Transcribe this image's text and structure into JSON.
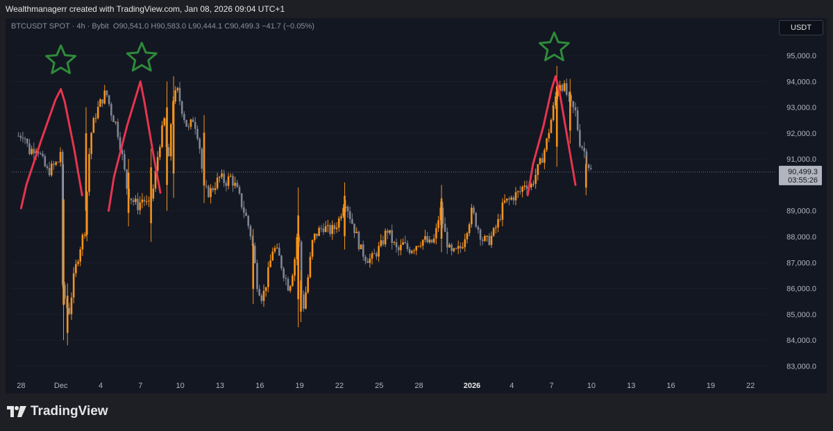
{
  "header": {
    "credit": "Wealthmanagerr created with TradingView.com, Jan 08, 2026 09:04 UTC+1"
  },
  "symbol_info": {
    "symbol": "BTCUSDT SPOT · 4h · Bybit",
    "o_label": "O",
    "o_value": "90,541.0",
    "h_label": "H",
    "h_value": "90,583.0",
    "l_label": "L",
    "l_value": "90,444.1",
    "c_label": "C",
    "c_value": "90,499.3",
    "change": "−41.7 (−0.05%)"
  },
  "currency": "USDT",
  "footer": {
    "brand": "TradingView"
  },
  "colors": {
    "up": "#f7931a",
    "down": "#7f8593",
    "trend_line": "#e8344e",
    "star": "#2e8b3a",
    "last_price_bg": "#b2b5be",
    "last_price_fg": "#131722"
  },
  "chart_data": {
    "type": "candlestick",
    "ylim": [
      82500,
      95700
    ],
    "y_ticks": [
      {
        "value": 95000,
        "label": "95,000.0"
      },
      {
        "value": 94000,
        "label": "94,000.0"
      },
      {
        "value": 93000,
        "label": "93,000.0"
      },
      {
        "value": 92000,
        "label": "92,000.0"
      },
      {
        "value": 91000,
        "label": "91,000.0"
      },
      {
        "value": 89000,
        "label": "89,000.0"
      },
      {
        "value": 88000,
        "label": "88,000.0"
      },
      {
        "value": 87000,
        "label": "87,000.0"
      },
      {
        "value": 86000,
        "label": "86,000.0"
      },
      {
        "value": 85000,
        "label": "85,000.0"
      },
      {
        "value": 84000,
        "label": "84,000.0"
      },
      {
        "value": 83000,
        "label": "83,000.0"
      }
    ],
    "x_ticks": [
      {
        "day": 28,
        "label": "28",
        "bold": false
      },
      {
        "day": 31,
        "label": "Dec",
        "bold": false
      },
      {
        "day": 34,
        "label": "4",
        "bold": false
      },
      {
        "day": 37,
        "label": "7",
        "bold": false
      },
      {
        "day": 40,
        "label": "10",
        "bold": false
      },
      {
        "day": 43,
        "label": "13",
        "bold": false
      },
      {
        "day": 46,
        "label": "16",
        "bold": false
      },
      {
        "day": 49,
        "label": "19",
        "bold": false
      },
      {
        "day": 52,
        "label": "22",
        "bold": false
      },
      {
        "day": 55,
        "label": "25",
        "bold": false
      },
      {
        "day": 58,
        "label": "28",
        "bold": false
      },
      {
        "day": 62,
        "label": "2026",
        "bold": true
      },
      {
        "day": 65,
        "label": "4",
        "bold": false
      },
      {
        "day": 68,
        "label": "7",
        "bold": false
      },
      {
        "day": 71,
        "label": "10",
        "bold": false
      },
      {
        "day": 74,
        "label": "13",
        "bold": false
      },
      {
        "day": 77,
        "label": "16",
        "bold": false
      },
      {
        "day": 80,
        "label": "19",
        "bold": false
      },
      {
        "day": 83,
        "label": "22",
        "bold": false
      }
    ],
    "last_price": {
      "value": 90499.3,
      "label": "90,499.3",
      "countdown": "03:55:26"
    },
    "path_points": [
      [
        27.8,
        91900
      ],
      [
        28.2,
        92000
      ],
      [
        28.6,
        91300
      ],
      [
        29.2,
        91500
      ],
      [
        29.7,
        90800
      ],
      [
        30.0,
        90500
      ],
      [
        30.8,
        90900
      ],
      [
        31.0,
        91400
      ],
      [
        31.1,
        86000
      ],
      [
        31.6,
        85000
      ],
      [
        32.0,
        86500
      ],
      [
        32.4,
        87500
      ],
      [
        32.8,
        88300
      ],
      [
        33.2,
        91800
      ],
      [
        33.6,
        92700
      ],
      [
        34.0,
        93200
      ],
      [
        34.4,
        93600
      ],
      [
        34.8,
        92800
      ],
      [
        35.2,
        92300
      ],
      [
        35.6,
        91200
      ],
      [
        36.0,
        89800
      ],
      [
        36.4,
        89400
      ],
      [
        36.8,
        89200
      ],
      [
        37.2,
        89500
      ],
      [
        37.6,
        89100
      ],
      [
        38.0,
        89900
      ],
      [
        38.4,
        91500
      ],
      [
        38.8,
        92500
      ],
      [
        39.1,
        90600
      ],
      [
        39.4,
        93300
      ],
      [
        39.8,
        93600
      ],
      [
        40.2,
        92800
      ],
      [
        40.6,
        92100
      ],
      [
        41.0,
        92600
      ],
      [
        41.4,
        91800
      ],
      [
        41.8,
        89800
      ],
      [
        42.2,
        89700
      ],
      [
        42.6,
        90000
      ],
      [
        43.0,
        90300
      ],
      [
        43.4,
        90100
      ],
      [
        43.8,
        90300
      ],
      [
        44.2,
        89900
      ],
      [
        44.6,
        89300
      ],
      [
        45.0,
        88700
      ],
      [
        45.4,
        87900
      ],
      [
        45.8,
        86200
      ],
      [
        46.2,
        85600
      ],
      [
        46.6,
        86500
      ],
      [
        47.0,
        87600
      ],
      [
        47.4,
        87300
      ],
      [
        47.8,
        86600
      ],
      [
        48.2,
        86000
      ],
      [
        48.6,
        87000
      ],
      [
        48.9,
        88500
      ],
      [
        49.2,
        85000
      ],
      [
        49.6,
        86300
      ],
      [
        50.0,
        87900
      ],
      [
        50.4,
        88200
      ],
      [
        50.8,
        88400
      ],
      [
        51.2,
        88200
      ],
      [
        51.6,
        88300
      ],
      [
        52.0,
        88700
      ],
      [
        52.4,
        89500
      ],
      [
        52.8,
        88800
      ],
      [
        53.2,
        88200
      ],
      [
        53.6,
        87500
      ],
      [
        54.0,
        87200
      ],
      [
        54.4,
        87100
      ],
      [
        54.8,
        87400
      ],
      [
        55.2,
        87700
      ],
      [
        55.6,
        88300
      ],
      [
        56.0,
        87800
      ],
      [
        56.4,
        87400
      ],
      [
        56.8,
        87700
      ],
      [
        57.2,
        87500
      ],
      [
        57.6,
        87600
      ],
      [
        58.0,
        87800
      ],
      [
        58.4,
        87900
      ],
      [
        58.8,
        87700
      ],
      [
        59.2,
        87900
      ],
      [
        59.6,
        89100
      ],
      [
        60.0,
        88000
      ],
      [
        60.4,
        87300
      ],
      [
        60.8,
        87400
      ],
      [
        61.2,
        87600
      ],
      [
        61.6,
        88300
      ],
      [
        62.0,
        89000
      ],
      [
        62.4,
        88400
      ],
      [
        62.8,
        87900
      ],
      [
        63.2,
        87800
      ],
      [
        63.6,
        88100
      ],
      [
        64.0,
        88600
      ],
      [
        64.4,
        89300
      ],
      [
        64.8,
        89400
      ],
      [
        65.2,
        89600
      ],
      [
        65.6,
        89700
      ],
      [
        66.0,
        90100
      ],
      [
        66.4,
        89900
      ],
      [
        66.8,
        90400
      ],
      [
        67.2,
        90900
      ],
      [
        67.6,
        91600
      ],
      [
        68.0,
        92600
      ],
      [
        68.3,
        93400
      ],
      [
        68.6,
        94000
      ],
      [
        69.0,
        93700
      ],
      [
        69.4,
        93100
      ],
      [
        69.8,
        92800
      ],
      [
        70.1,
        91700
      ],
      [
        70.4,
        91400
      ],
      [
        70.7,
        90900
      ],
      [
        71.0,
        90500
      ]
    ],
    "spikes": [
      {
        "day": 31.2,
        "low": 84000,
        "high": 90800
      },
      {
        "day": 31.5,
        "low": 83800,
        "high": 86200
      },
      {
        "day": 32.9,
        "low": 88000,
        "high": 93000
      },
      {
        "day": 36.1,
        "low": 88400,
        "high": 91000
      },
      {
        "day": 37.8,
        "low": 87800,
        "high": 91400
      },
      {
        "day": 39.0,
        "low": 89000,
        "high": 94000
      },
      {
        "day": 39.5,
        "low": 89500,
        "high": 94200
      },
      {
        "day": 41.8,
        "low": 89300,
        "high": 92700
      },
      {
        "day": 45.5,
        "low": 85400,
        "high": 88300
      },
      {
        "day": 48.9,
        "low": 84500,
        "high": 89900
      },
      {
        "day": 49.1,
        "low": 84700,
        "high": 86700
      },
      {
        "day": 52.4,
        "low": 87500,
        "high": 90100
      },
      {
        "day": 59.7,
        "low": 87400,
        "high": 90000
      },
      {
        "day": 68.4,
        "low": 90700,
        "high": 94600
      },
      {
        "day": 69.4,
        "low": 91600,
        "high": 94100
      },
      {
        "day": 70.6,
        "low": 89600,
        "high": 91100
      }
    ],
    "trend_lines": [
      [
        [
          28.0,
          89100
        ],
        [
          28.4,
          90000
        ],
        [
          29.5,
          91700
        ],
        [
          30.6,
          93300
        ],
        [
          31.0,
          93700
        ],
        [
          31.3,
          93200
        ],
        [
          32.0,
          91400
        ],
        [
          32.6,
          89600
        ]
      ],
      [
        [
          34.6,
          89000
        ],
        [
          35.0,
          90300
        ],
        [
          36.0,
          92300
        ],
        [
          37.0,
          94000
        ],
        [
          37.3,
          93200
        ],
        [
          38.0,
          91100
        ],
        [
          38.5,
          89700
        ]
      ],
      [
        [
          66.2,
          89600
        ],
        [
          66.6,
          90800
        ],
        [
          67.4,
          92300
        ],
        [
          68.0,
          93700
        ],
        [
          68.3,
          94200
        ],
        [
          68.6,
          93600
        ],
        [
          69.2,
          91800
        ],
        [
          69.8,
          90000
        ]
      ]
    ],
    "star_annotations": [
      {
        "day": 31.0,
        "price": 94800
      },
      {
        "day": 37.1,
        "price": 94900
      },
      {
        "day": 68.2,
        "price": 95300
      }
    ]
  }
}
